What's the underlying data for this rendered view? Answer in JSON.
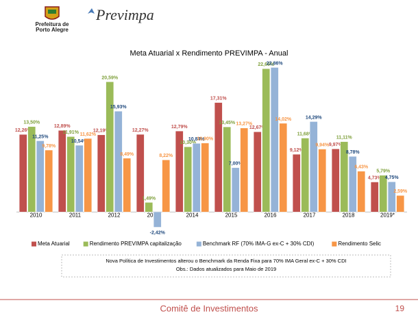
{
  "header": {
    "org_line1": "Prefeitura de",
    "org_line2": "Porto Alegre",
    "brand": "Previmpa"
  },
  "chart_data": {
    "type": "bar",
    "title": "Meta Atuarial x Rendimento PREVIMPA - Anual",
    "categories": [
      "2010",
      "2011",
      "2012",
      "2013",
      "2014",
      "2015",
      "2016",
      "2017",
      "2018",
      "2019*"
    ],
    "ylim": [
      -4,
      24
    ],
    "series": [
      {
        "name": "Meta Atuarial",
        "color": "#c0504d",
        "label_color": "#c0504d",
        "values": [
          12.26,
          12.89,
          12.19,
          12.27,
          12.79,
          17.31,
          12.67,
          9.12,
          9.97,
          4.73
        ],
        "value_labels": [
          "12,26%",
          "12,89%",
          "12,19%",
          "12,27%",
          "12,79%",
          "17,31%",
          "12,67%",
          "9,12%",
          "9,97%",
          "4,73%"
        ]
      },
      {
        "name": "Rendimento PREVIMPA capitalização",
        "color": "#9bbb59",
        "label_color": "#7fa03c",
        "values": [
          13.5,
          11.91,
          20.59,
          1.49,
          10.3,
          13.45,
          22.66,
          11.68,
          11.11,
          5.79
        ],
        "value_labels": [
          "13,50%",
          "11,91%",
          "20,59%",
          "1,49%",
          "10,30%",
          "13,45%",
          "22,66%",
          "11,68%",
          "11,11%",
          "5,79%"
        ]
      },
      {
        "name": "Benchmark RF (70% IMA-G ex-C + 30% CDI)",
        "color": "#95b3d7",
        "label_color": "#1f497d",
        "values": [
          11.25,
          10.54,
          15.93,
          -2.42,
          10.84,
          7.0,
          22.86,
          14.29,
          8.78,
          4.75
        ],
        "value_labels": [
          "11,25%",
          "10,54%",
          "15,93%",
          "-2,42%",
          "10,84%",
          "7,00%",
          "22,86%",
          "14,29%",
          "8,78%",
          "4,75%"
        ]
      },
      {
        "name": "Rendimento Selic",
        "color": "#f79646",
        "label_color": "#f79646",
        "values": [
          9.78,
          11.62,
          8.49,
          8.22,
          10.9,
          13.27,
          14.02,
          9.94,
          6.43,
          2.59
        ],
        "value_labels": [
          "9,78%",
          "11,62%",
          "8,49%",
          "8,22%",
          "10,90%",
          "13,27%",
          "14,02%",
          "9,94%",
          "6,43%",
          "2,59%"
        ]
      }
    ],
    "legend": "bottom"
  },
  "note": {
    "line1": "Nova Política de Investimentos alterou  o Benchmark  da Renda Fixa para 70% IMA Geral ex-C + 30% CDI",
    "line2": "Obs.: Dados atualizados para Maio de 2019"
  },
  "footer": {
    "text": "Comitê de Investimentos",
    "page": "19"
  }
}
